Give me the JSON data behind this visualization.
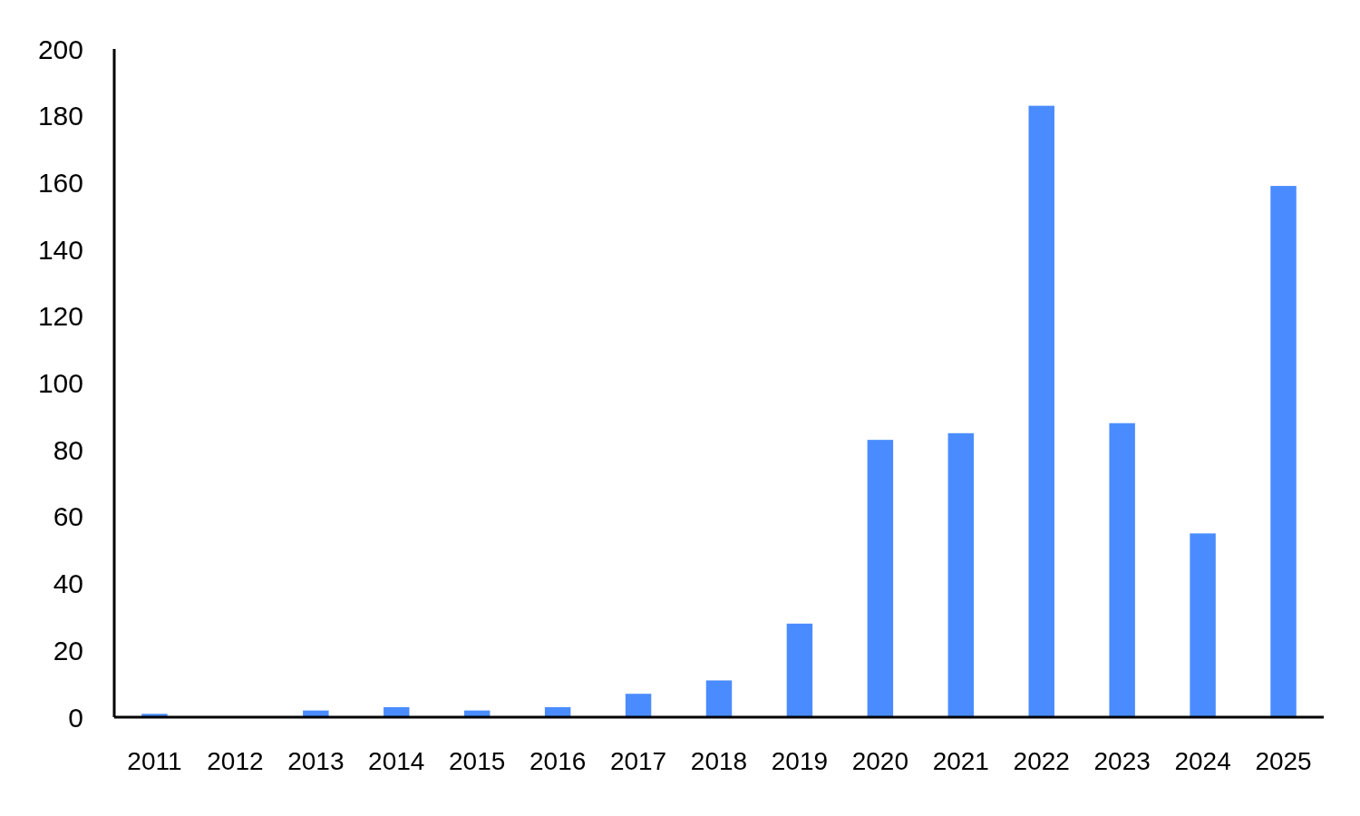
{
  "chart_data": {
    "type": "bar",
    "categories": [
      "2011",
      "2012",
      "2013",
      "2014",
      "2015",
      "2016",
      "2017",
      "2018",
      "2019",
      "2020",
      "2021",
      "2022",
      "2023",
      "2024",
      "2025"
    ],
    "values": [
      1,
      0,
      2,
      3,
      2,
      3,
      7,
      11,
      28,
      83,
      85,
      183,
      88,
      55,
      159
    ],
    "color": "#4a8cff",
    "ylim": [
      0,
      200
    ],
    "yticks": [
      0,
      20,
      40,
      60,
      80,
      100,
      120,
      140,
      160,
      180,
      200
    ],
    "grid": false
  }
}
